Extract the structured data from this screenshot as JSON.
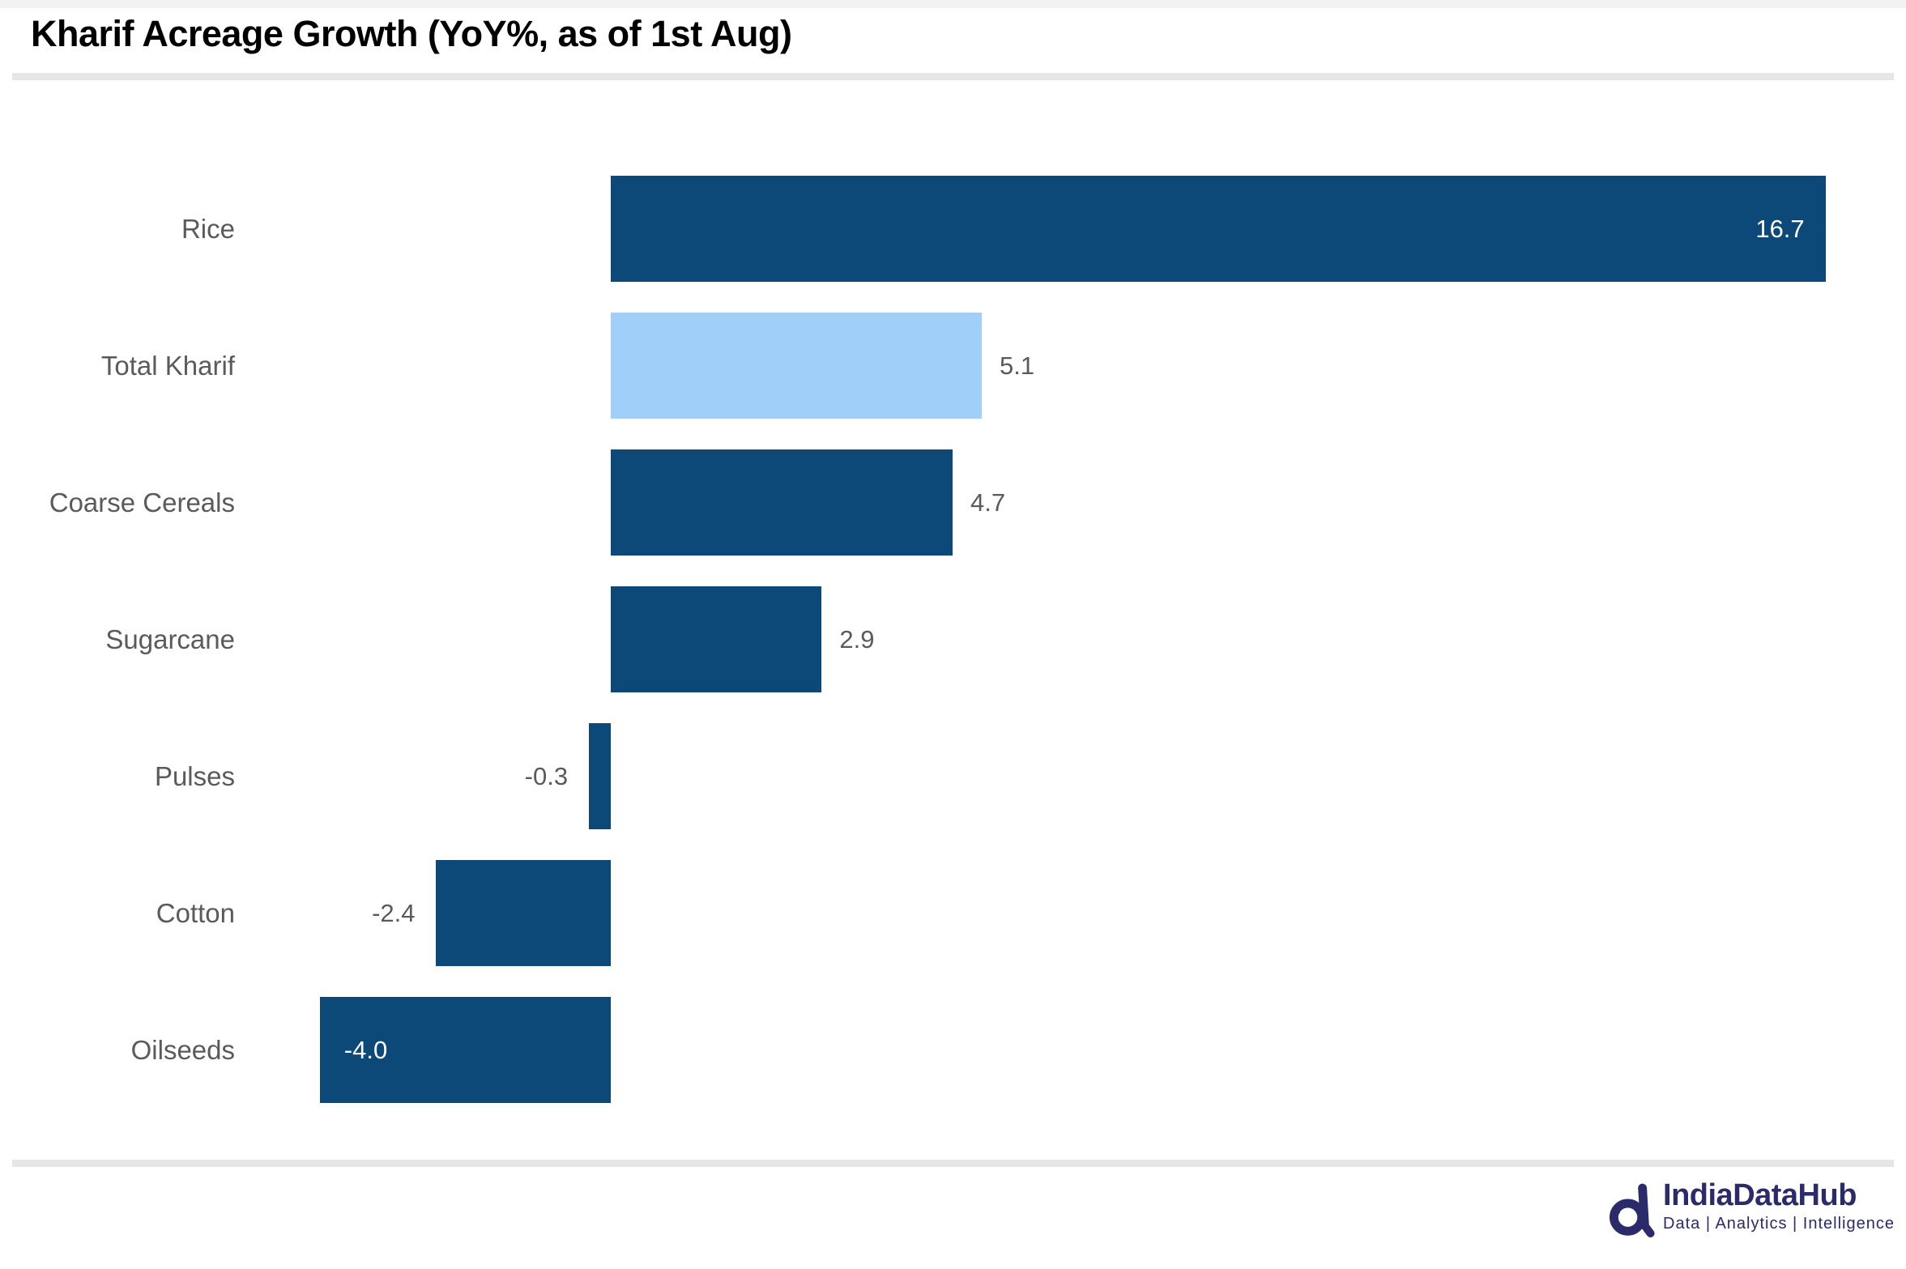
{
  "chart_data": {
    "type": "bar",
    "orientation": "horizontal",
    "title": "Kharif Acreage Growth (YoY%, as of 1st Aug)",
    "categories": [
      "Rice",
      "Total Kharif",
      "Coarse Cereals",
      "Sugarcane",
      "Pulses",
      "Cotton",
      "Oilseeds"
    ],
    "values": [
      16.7,
      5.1,
      4.7,
      2.9,
      -0.3,
      -2.4,
      -4.0
    ],
    "value_labels": [
      "16.7",
      "5.1",
      "4.7",
      "2.9",
      "-0.3",
      "-2.4",
      "-4.0"
    ],
    "xlabel": "",
    "ylabel": "",
    "xlim": [
      -4.8,
      17.7
    ],
    "baseline": 0,
    "grid": false,
    "legend": false,
    "highlight_category": "Total Kharif"
  },
  "colors": {
    "bar": "#0C4878",
    "highlight_bar": "#A0CFFA",
    "category_label": "#5A5A5A",
    "value_label_outside": "#5A5A5A",
    "value_label_inside": "#FFFFFF",
    "title": "#000000",
    "divider": "#E6E6E6",
    "brand_navy": "#2B2A6A"
  },
  "footer": {
    "brand": "IndiaDataHub",
    "tagline": "Data | Analytics | Intelligence"
  }
}
